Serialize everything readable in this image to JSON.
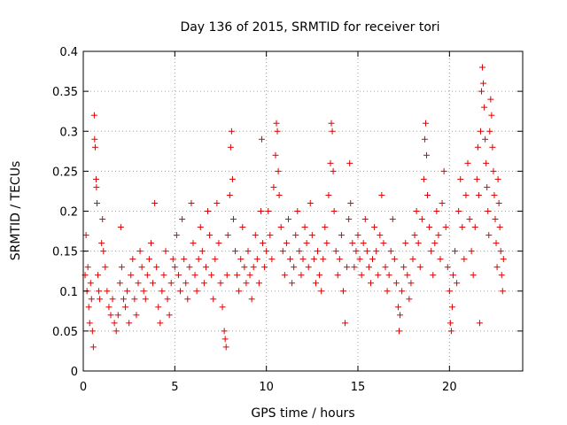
{
  "chart_data": {
    "type": "scatter",
    "title": "Day 136 of 2015, SRMTID for receiver tori",
    "xlabel": "GPS time / hours",
    "ylabel": "SRMTID / TECUs",
    "xlim": [
      0,
      24
    ],
    "ylim": [
      0,
      0.4
    ],
    "xticks": [
      0,
      5,
      10,
      15,
      20
    ],
    "xtick_labels": [
      "0",
      "5",
      "10",
      "15",
      "20"
    ],
    "yticks": [
      0,
      0.05,
      0.1,
      0.15,
      0.2,
      0.25,
      0.3,
      0.35,
      0.4
    ],
    "ytick_labels": [
      "0",
      "0.05",
      "0.1",
      "0.15",
      "0.2",
      "0.25",
      "0.3",
      "0.35",
      "0.4"
    ],
    "grid": true,
    "marker": "plus",
    "color": "#e00000",
    "series": [
      {
        "name": "SRMTID",
        "points": [
          [
            0.0,
            0.15
          ],
          [
            0.1,
            0.12
          ],
          [
            0.15,
            0.17
          ],
          [
            0.2,
            0.1
          ],
          [
            0.25,
            0.13
          ],
          [
            0.3,
            0.08
          ],
          [
            0.35,
            0.06
          ],
          [
            0.4,
            0.11
          ],
          [
            0.45,
            0.09
          ],
          [
            0.5,
            0.05
          ],
          [
            0.55,
            0.03
          ],
          [
            0.6,
            0.32
          ],
          [
            0.62,
            0.29
          ],
          [
            0.65,
            0.28
          ],
          [
            0.7,
            0.24
          ],
          [
            0.72,
            0.23
          ],
          [
            0.75,
            0.21
          ],
          [
            0.8,
            0.12
          ],
          [
            0.85,
            0.1
          ],
          [
            0.9,
            0.09
          ],
          [
            1.0,
            0.16
          ],
          [
            1.05,
            0.19
          ],
          [
            1.1,
            0.15
          ],
          [
            1.2,
            0.13
          ],
          [
            1.3,
            0.1
          ],
          [
            1.4,
            0.08
          ],
          [
            1.5,
            0.07
          ],
          [
            1.6,
            0.09
          ],
          [
            1.7,
            0.06
          ],
          [
            1.8,
            0.05
          ],
          [
            1.9,
            0.07
          ],
          [
            2.0,
            0.11
          ],
          [
            2.05,
            0.18
          ],
          [
            2.1,
            0.13
          ],
          [
            2.2,
            0.09
          ],
          [
            2.3,
            0.08
          ],
          [
            2.4,
            0.1
          ],
          [
            2.5,
            0.06
          ],
          [
            2.6,
            0.12
          ],
          [
            2.7,
            0.14
          ],
          [
            2.8,
            0.09
          ],
          [
            2.9,
            0.07
          ],
          [
            3.0,
            0.11
          ],
          [
            3.1,
            0.15
          ],
          [
            3.2,
            0.13
          ],
          [
            3.3,
            0.1
          ],
          [
            3.4,
            0.09
          ],
          [
            3.5,
            0.12
          ],
          [
            3.6,
            0.14
          ],
          [
            3.7,
            0.16
          ],
          [
            3.8,
            0.11
          ],
          [
            3.9,
            0.21
          ],
          [
            4.0,
            0.13
          ],
          [
            4.1,
            0.08
          ],
          [
            4.2,
            0.06
          ],
          [
            4.3,
            0.1
          ],
          [
            4.4,
            0.12
          ],
          [
            4.5,
            0.15
          ],
          [
            4.6,
            0.09
          ],
          [
            4.7,
            0.07
          ],
          [
            4.8,
            0.11
          ],
          [
            4.9,
            0.14
          ],
          [
            5.0,
            0.13
          ],
          [
            5.1,
            0.17
          ],
          [
            5.2,
            0.12
          ],
          [
            5.3,
            0.1
          ],
          [
            5.4,
            0.19
          ],
          [
            5.5,
            0.14
          ],
          [
            5.6,
            0.11
          ],
          [
            5.7,
            0.09
          ],
          [
            5.8,
            0.13
          ],
          [
            5.9,
            0.21
          ],
          [
            6.0,
            0.16
          ],
          [
            6.1,
            0.12
          ],
          [
            6.2,
            0.1
          ],
          [
            6.3,
            0.14
          ],
          [
            6.4,
            0.18
          ],
          [
            6.5,
            0.15
          ],
          [
            6.6,
            0.11
          ],
          [
            6.7,
            0.13
          ],
          [
            6.8,
            0.2
          ],
          [
            6.9,
            0.17
          ],
          [
            7.0,
            0.12
          ],
          [
            7.1,
            0.09
          ],
          [
            7.2,
            0.14
          ],
          [
            7.3,
            0.21
          ],
          [
            7.4,
            0.16
          ],
          [
            7.5,
            0.11
          ],
          [
            7.6,
            0.08
          ],
          [
            7.7,
            0.05
          ],
          [
            7.75,
            0.04
          ],
          [
            7.8,
            0.03
          ],
          [
            7.85,
            0.12
          ],
          [
            7.9,
            0.17
          ],
          [
            8.0,
            0.22
          ],
          [
            8.05,
            0.28
          ],
          [
            8.1,
            0.3
          ],
          [
            8.15,
            0.24
          ],
          [
            8.2,
            0.19
          ],
          [
            8.3,
            0.15
          ],
          [
            8.4,
            0.12
          ],
          [
            8.5,
            0.1
          ],
          [
            8.6,
            0.14
          ],
          [
            8.7,
            0.18
          ],
          [
            8.8,
            0.13
          ],
          [
            8.9,
            0.11
          ],
          [
            9.0,
            0.15
          ],
          [
            9.1,
            0.12
          ],
          [
            9.2,
            0.09
          ],
          [
            9.3,
            0.13
          ],
          [
            9.4,
            0.17
          ],
          [
            9.5,
            0.14
          ],
          [
            9.6,
            0.11
          ],
          [
            9.7,
            0.2
          ],
          [
            9.75,
            0.29
          ],
          [
            9.8,
            0.16
          ],
          [
            9.9,
            0.13
          ],
          [
            10.0,
            0.15
          ],
          [
            10.1,
            0.2
          ],
          [
            10.2,
            0.17
          ],
          [
            10.3,
            0.14
          ],
          [
            10.4,
            0.23
          ],
          [
            10.5,
            0.27
          ],
          [
            10.55,
            0.31
          ],
          [
            10.6,
            0.3
          ],
          [
            10.65,
            0.25
          ],
          [
            10.7,
            0.22
          ],
          [
            10.8,
            0.18
          ],
          [
            10.9,
            0.15
          ],
          [
            11.0,
            0.12
          ],
          [
            11.1,
            0.16
          ],
          [
            11.2,
            0.19
          ],
          [
            11.3,
            0.14
          ],
          [
            11.4,
            0.11
          ],
          [
            11.5,
            0.13
          ],
          [
            11.6,
            0.17
          ],
          [
            11.7,
            0.2
          ],
          [
            11.8,
            0.15
          ],
          [
            11.9,
            0.12
          ],
          [
            12.0,
            0.14
          ],
          [
            12.1,
            0.18
          ],
          [
            12.2,
            0.16
          ],
          [
            12.3,
            0.13
          ],
          [
            12.4,
            0.21
          ],
          [
            12.5,
            0.17
          ],
          [
            12.6,
            0.14
          ],
          [
            12.7,
            0.11
          ],
          [
            12.8,
            0.15
          ],
          [
            12.9,
            0.12
          ],
          [
            13.0,
            0.1
          ],
          [
            13.1,
            0.14
          ],
          [
            13.2,
            0.18
          ],
          [
            13.3,
            0.16
          ],
          [
            13.4,
            0.22
          ],
          [
            13.5,
            0.26
          ],
          [
            13.55,
            0.31
          ],
          [
            13.6,
            0.3
          ],
          [
            13.65,
            0.25
          ],
          [
            13.7,
            0.2
          ],
          [
            13.8,
            0.15
          ],
          [
            13.9,
            0.12
          ],
          [
            14.0,
            0.14
          ],
          [
            14.1,
            0.17
          ],
          [
            14.2,
            0.1
          ],
          [
            14.3,
            0.06
          ],
          [
            14.4,
            0.13
          ],
          [
            14.5,
            0.19
          ],
          [
            14.55,
            0.26
          ],
          [
            14.6,
            0.21
          ],
          [
            14.7,
            0.16
          ],
          [
            14.8,
            0.13
          ],
          [
            14.9,
            0.15
          ],
          [
            15.0,
            0.17
          ],
          [
            15.1,
            0.14
          ],
          [
            15.2,
            0.12
          ],
          [
            15.3,
            0.16
          ],
          [
            15.4,
            0.19
          ],
          [
            15.5,
            0.15
          ],
          [
            15.6,
            0.13
          ],
          [
            15.7,
            0.11
          ],
          [
            15.8,
            0.14
          ],
          [
            15.9,
            0.18
          ],
          [
            16.0,
            0.15
          ],
          [
            16.1,
            0.12
          ],
          [
            16.2,
            0.17
          ],
          [
            16.3,
            0.22
          ],
          [
            16.4,
            0.16
          ],
          [
            16.5,
            0.13
          ],
          [
            16.6,
            0.1
          ],
          [
            16.7,
            0.12
          ],
          [
            16.8,
            0.15
          ],
          [
            16.9,
            0.19
          ],
          [
            17.0,
            0.14
          ],
          [
            17.1,
            0.11
          ],
          [
            17.2,
            0.08
          ],
          [
            17.25,
            0.05
          ],
          [
            17.3,
            0.07
          ],
          [
            17.4,
            0.1
          ],
          [
            17.5,
            0.13
          ],
          [
            17.6,
            0.16
          ],
          [
            17.7,
            0.12
          ],
          [
            17.8,
            0.09
          ],
          [
            17.9,
            0.11
          ],
          [
            18.0,
            0.14
          ],
          [
            18.1,
            0.17
          ],
          [
            18.2,
            0.2
          ],
          [
            18.3,
            0.16
          ],
          [
            18.4,
            0.13
          ],
          [
            18.5,
            0.19
          ],
          [
            18.6,
            0.24
          ],
          [
            18.65,
            0.29
          ],
          [
            18.7,
            0.31
          ],
          [
            18.75,
            0.27
          ],
          [
            18.8,
            0.22
          ],
          [
            18.9,
            0.18
          ],
          [
            19.0,
            0.15
          ],
          [
            19.1,
            0.12
          ],
          [
            19.2,
            0.16
          ],
          [
            19.3,
            0.2
          ],
          [
            19.4,
            0.17
          ],
          [
            19.5,
            0.14
          ],
          [
            19.6,
            0.21
          ],
          [
            19.7,
            0.25
          ],
          [
            19.8,
            0.18
          ],
          [
            19.9,
            0.13
          ],
          [
            20.0,
            0.1
          ],
          [
            20.05,
            0.06
          ],
          [
            20.1,
            0.05
          ],
          [
            20.15,
            0.08
          ],
          [
            20.2,
            0.12
          ],
          [
            20.3,
            0.15
          ],
          [
            20.4,
            0.11
          ],
          [
            20.5,
            0.2
          ],
          [
            20.6,
            0.24
          ],
          [
            20.7,
            0.18
          ],
          [
            20.8,
            0.14
          ],
          [
            20.9,
            0.22
          ],
          [
            21.0,
            0.26
          ],
          [
            21.1,
            0.19
          ],
          [
            21.2,
            0.15
          ],
          [
            21.3,
            0.12
          ],
          [
            21.4,
            0.18
          ],
          [
            21.5,
            0.24
          ],
          [
            21.55,
            0.28
          ],
          [
            21.6,
            0.22
          ],
          [
            21.65,
            0.06
          ],
          [
            21.7,
            0.3
          ],
          [
            21.75,
            0.35
          ],
          [
            21.8,
            0.38
          ],
          [
            21.85,
            0.36
          ],
          [
            21.9,
            0.33
          ],
          [
            21.95,
            0.29
          ],
          [
            22.0,
            0.26
          ],
          [
            22.05,
            0.23
          ],
          [
            22.1,
            0.2
          ],
          [
            22.15,
            0.17
          ],
          [
            22.2,
            0.3
          ],
          [
            22.25,
            0.34
          ],
          [
            22.3,
            0.32
          ],
          [
            22.35,
            0.28
          ],
          [
            22.4,
            0.25
          ],
          [
            22.45,
            0.22
          ],
          [
            22.5,
            0.19
          ],
          [
            22.55,
            0.16
          ],
          [
            22.6,
            0.13
          ],
          [
            22.65,
            0.24
          ],
          [
            22.7,
            0.21
          ],
          [
            22.75,
            0.18
          ],
          [
            22.8,
            0.15
          ],
          [
            22.85,
            0.12
          ],
          [
            22.9,
            0.1
          ],
          [
            22.95,
            0.14
          ]
        ]
      }
    ]
  }
}
